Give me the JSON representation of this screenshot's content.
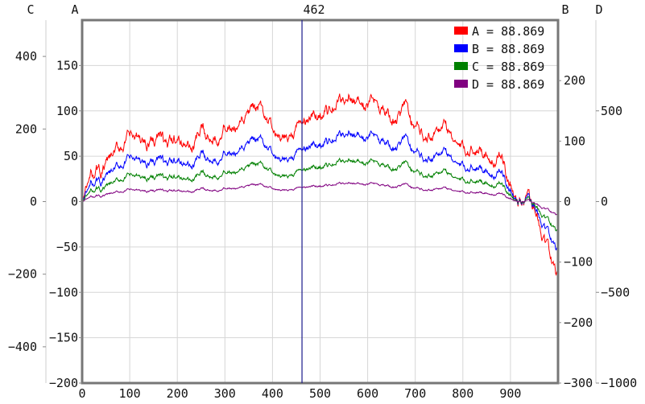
{
  "chart_data": {
    "type": "line",
    "x_axis": {
      "ticks": [
        0,
        100,
        200,
        300,
        400,
        500,
        600,
        700,
        800,
        900
      ],
      "range": [
        0,
        1000
      ]
    },
    "axes": {
      "A": {
        "name": "A",
        "side": "left-inner",
        "range": [
          -200,
          200
        ],
        "ticks": [
          150,
          100,
          50,
          0,
          -50,
          -100,
          -150,
          -200
        ]
      },
      "B": {
        "name": "B",
        "side": "right-inner",
        "range": [
          -300,
          300
        ],
        "ticks": [
          200,
          100,
          0,
          -100,
          -200,
          -300
        ]
      },
      "C": {
        "name": "C",
        "side": "left-outer",
        "range": [
          -500,
          500
        ],
        "ticks": [
          400,
          200,
          0,
          -200,
          -400
        ]
      },
      "D": {
        "name": "D",
        "side": "right-outer",
        "range": [
          -1000,
          1000
        ],
        "ticks": [
          500,
          0,
          -500,
          -1000
        ]
      }
    },
    "grid": true,
    "cursor": {
      "x": 462,
      "label": "462",
      "color": "#1a1a8c"
    },
    "legend_position": "top-right",
    "series": [
      {
        "name": "A",
        "legend_label": "A = 88.869",
        "color": "#ff0000",
        "axis": "A",
        "scale": 1.0
      },
      {
        "name": "B",
        "legend_label": "B = 88.869",
        "color": "#0000ff",
        "axis": "A",
        "scale": 0.66
      },
      {
        "name": "C",
        "legend_label": "C = 88.869",
        "color": "#008000",
        "axis": "A",
        "scale": 0.4
      },
      {
        "name": "D",
        "legend_label": "D = 88.869",
        "color": "#800080",
        "axis": "A",
        "scale": 0.18
      }
    ],
    "base_series": {
      "x": [
        0,
        10,
        20,
        30,
        40,
        60,
        80,
        100,
        130,
        160,
        180,
        200,
        230,
        250,
        270,
        300,
        330,
        350,
        370,
        390,
        420,
        440,
        460,
        480,
        500,
        520,
        540,
        560,
        580,
        600,
        620,
        640,
        660,
        680,
        700,
        730,
        760,
        800,
        830,
        860,
        880,
        900,
        915,
        930,
        950,
        970,
        990,
        1000
      ],
      "y": [
        0,
        15,
        30,
        35,
        32,
        45,
        60,
        70,
        65,
        72,
        60,
        68,
        58,
        75,
        70,
        85,
        78,
        95,
        100,
        88,
        60,
        75,
        85,
        92,
        98,
        100,
        108,
        118,
        110,
        105,
        112,
        100,
        85,
        105,
        80,
        75,
        85,
        55,
        60,
        52,
        45,
        20,
        0,
        5,
        -10,
        -40,
        -70,
        -85
      ]
    }
  },
  "header": {
    "cursor_label": "462"
  },
  "legend": {
    "items": [
      {
        "label": "A = 88.869",
        "color": "#ff0000"
      },
      {
        "label": "B = 88.869",
        "color": "#0000ff"
      },
      {
        "label": "C = 88.869",
        "color": "#008000"
      },
      {
        "label": "D = 88.869",
        "color": "#800080"
      }
    ]
  }
}
